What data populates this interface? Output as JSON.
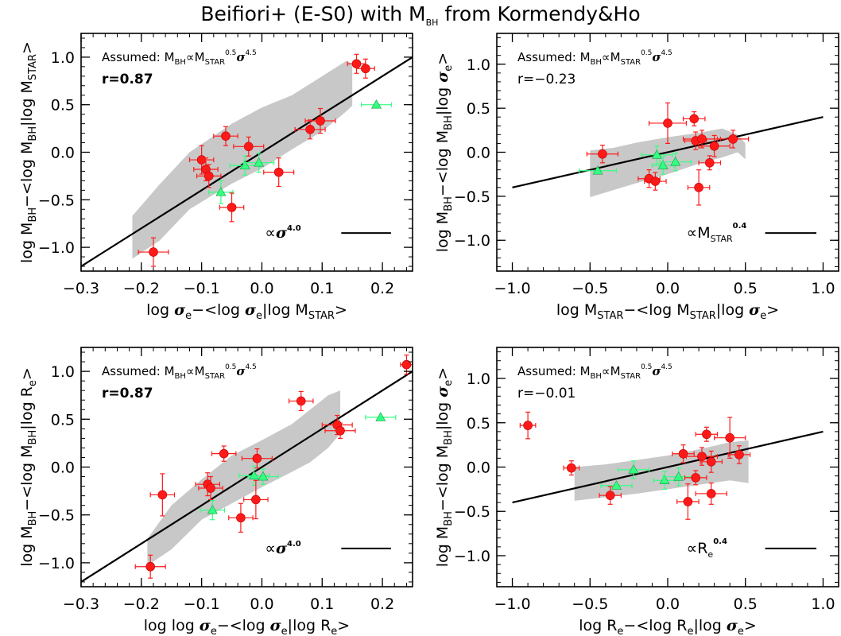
{
  "colors": {
    "red": "#ff1a1a",
    "green": "#33ff80",
    "band": "#c8c8c8",
    "line": "#000000"
  },
  "title": {
    "main": "Beifiori+ (E-S0) with M",
    "sub": "BH",
    "rest": " from Kormendy&Ho"
  },
  "assumed": {
    "prefix": "Assumed: M",
    "bh": "BH",
    "prop": "∝M",
    "star": "STAR",
    "exp1": "0.5",
    "sig": "σ",
    "exp2": "4.5"
  },
  "chart_data": [
    {
      "type": "scatter",
      "id": "tl",
      "xlim": [
        -0.3,
        0.25
      ],
      "ylim": [
        -1.25,
        1.25
      ],
      "xticks": [
        -0.3,
        -0.2,
        -0.1,
        0.0,
        0.1,
        0.2
      ],
      "xtick_labels": [
        "−0.3",
        "−0.2",
        "−0.1",
        "0.0",
        "0.1",
        "0.2"
      ],
      "yticks": [
        -1.0,
        -0.5,
        0.0,
        0.5,
        1.0
      ],
      "ytick_labels": [
        "−1.0",
        "−0.5",
        "0.0",
        "0.5",
        "1.0"
      ],
      "r_label": "r=0.87",
      "r_bold": true,
      "scale_label": {
        "prefix": "∝",
        "base": "σ",
        "base_italic": true,
        "exp": "4.0"
      },
      "fit_line": [
        [
          -0.3,
          -1.2
        ],
        [
          0.25,
          1.0
        ]
      ],
      "band_upper": [
        [
          -0.215,
          -0.67
        ],
        [
          -0.17,
          -0.34
        ],
        [
          -0.12,
          0.0
        ],
        [
          -0.05,
          0.3
        ],
        [
          0.0,
          0.47
        ],
        [
          0.05,
          0.6
        ],
        [
          0.1,
          0.8
        ],
        [
          0.14,
          0.96
        ],
        [
          0.15,
          0.93
        ]
      ],
      "band_lower": [
        [
          -0.215,
          -1.12
        ],
        [
          -0.17,
          -0.93
        ],
        [
          -0.12,
          -0.6
        ],
        [
          -0.05,
          -0.33
        ],
        [
          0.0,
          -0.17
        ],
        [
          0.05,
          0.03
        ],
        [
          0.1,
          0.22
        ],
        [
          0.14,
          0.43
        ],
        [
          0.15,
          0.49
        ]
      ],
      "red": [
        {
          "x": -0.18,
          "y": -1.05,
          "ex": 0.025,
          "ey": 0.15
        },
        {
          "x": -0.1,
          "y": -0.08,
          "ex": 0.02,
          "ey": 0.15
        },
        {
          "x": -0.093,
          "y": -0.18,
          "ex": 0.02,
          "ey": 0.12
        },
        {
          "x": -0.088,
          "y": -0.25,
          "ex": 0.02,
          "ey": 0.12
        },
        {
          "x": -0.06,
          "y": 0.17,
          "ex": 0.02,
          "ey": 0.1
        },
        {
          "x": -0.022,
          "y": 0.06,
          "ex": 0.025,
          "ey": 0.1
        },
        {
          "x": -0.05,
          "y": -0.58,
          "ex": 0.02,
          "ey": 0.15
        },
        {
          "x": 0.028,
          "y": -0.21,
          "ex": 0.025,
          "ey": 0.15
        },
        {
          "x": 0.08,
          "y": 0.24,
          "ex": 0.025,
          "ey": 0.1
        },
        {
          "x": 0.097,
          "y": 0.33,
          "ex": 0.025,
          "ey": 0.13
        },
        {
          "x": 0.157,
          "y": 0.93,
          "ex": 0.015,
          "ey": 0.1
        },
        {
          "x": 0.172,
          "y": 0.88,
          "ex": 0.015,
          "ey": 0.1
        }
      ],
      "green": [
        {
          "x": -0.068,
          "y": -0.42,
          "ex": 0.02,
          "ey": 0.12
        },
        {
          "x": -0.028,
          "y": -0.14,
          "ex": 0.025,
          "ey": 0.1
        },
        {
          "x": -0.005,
          "y": -0.11,
          "ex": 0.025,
          "ey": 0.1
        },
        {
          "x": 0.19,
          "y": 0.5,
          "ex": 0.025,
          "ey": 0.0
        }
      ],
      "xlabel": {
        "parts": [
          [
            "log ",
            ""
          ],
          [
            "σ",
            "sig"
          ],
          [
            "e",
            "sub"
          ],
          [
            "−<log ",
            ""
          ],
          [
            "σ",
            "sig"
          ],
          [
            "e",
            "sub"
          ],
          [
            "|log M",
            ""
          ],
          [
            "STAR",
            "sub"
          ],
          [
            ">",
            ""
          ]
        ]
      },
      "ylabel": {
        "parts": [
          [
            "log M",
            ""
          ],
          [
            "BH",
            "sub"
          ],
          [
            "−<log M",
            ""
          ],
          [
            "BH",
            "sub"
          ],
          [
            "|log M",
            ""
          ],
          [
            "STAR",
            "sub"
          ],
          [
            ">",
            ""
          ]
        ]
      }
    },
    {
      "type": "scatter",
      "id": "tr",
      "xlim": [
        -1.1,
        1.1
      ],
      "ylim": [
        -1.35,
        1.35
      ],
      "xticks": [
        -1.0,
        -0.5,
        0.0,
        0.5,
        1.0
      ],
      "xtick_labels": [
        "−1.0",
        "−0.5",
        "0.0",
        "0.5",
        "1.0"
      ],
      "yticks": [
        -1.0,
        -0.5,
        0.0,
        0.5,
        1.0
      ],
      "ytick_labels": [
        "−1.0",
        "−0.5",
        "0.0",
        "0.5",
        "1.0"
      ],
      "r_label": "r=−0.23",
      "r_bold": false,
      "scale_label": {
        "prefix": "∝",
        "base": "M",
        "sub": "STAR",
        "base_italic": false,
        "exp": "0.4"
      },
      "fit_line": [
        [
          -1.0,
          -0.4
        ],
        [
          1.0,
          0.4
        ]
      ],
      "band_upper": [
        [
          -0.5,
          0.02
        ],
        [
          -0.35,
          0.05
        ],
        [
          -0.2,
          0.11
        ],
        [
          0.0,
          0.17
        ],
        [
          0.2,
          0.22
        ],
        [
          0.35,
          0.27
        ],
        [
          0.45,
          0.2
        ],
        [
          0.5,
          0.1
        ]
      ],
      "band_lower": [
        [
          -0.5,
          -0.51
        ],
        [
          -0.35,
          -0.43
        ],
        [
          -0.2,
          -0.35
        ],
        [
          0.0,
          -0.25
        ],
        [
          0.2,
          -0.13
        ],
        [
          0.35,
          -0.06
        ],
        [
          0.45,
          0.0
        ],
        [
          0.5,
          -0.08
        ]
      ],
      "red": [
        {
          "x": -0.42,
          "y": -0.02,
          "ex": 0.1,
          "ey": 0.1
        },
        {
          "x": -0.12,
          "y": -0.3,
          "ex": 0.07,
          "ey": 0.1
        },
        {
          "x": -0.08,
          "y": -0.33,
          "ex": 0.07,
          "ey": 0.1
        },
        {
          "x": 0.0,
          "y": 0.33,
          "ex": 0.12,
          "ey": 0.23
        },
        {
          "x": 0.17,
          "y": 0.38,
          "ex": 0.07,
          "ey": 0.08
        },
        {
          "x": 0.18,
          "y": 0.13,
          "ex": 0.07,
          "ey": 0.1
        },
        {
          "x": 0.2,
          "y": -0.4,
          "ex": 0.07,
          "ey": 0.2
        },
        {
          "x": 0.22,
          "y": 0.15,
          "ex": 0.12,
          "ey": 0.1
        },
        {
          "x": 0.27,
          "y": -0.12,
          "ex": 0.07,
          "ey": 0.08
        },
        {
          "x": 0.3,
          "y": 0.07,
          "ex": 0.1,
          "ey": 0.12
        },
        {
          "x": 0.42,
          "y": 0.15,
          "ex": 0.1,
          "ey": 0.1
        }
      ],
      "green": [
        {
          "x": -0.45,
          "y": -0.21,
          "ex": 0.12,
          "ey": 0.0
        },
        {
          "x": -0.07,
          "y": -0.03,
          "ex": 0.1,
          "ey": 0.1
        },
        {
          "x": -0.03,
          "y": -0.15,
          "ex": 0.07,
          "ey": 0.1
        },
        {
          "x": 0.05,
          "y": -0.11,
          "ex": 0.1,
          "ey": 0.1
        }
      ],
      "xlabel": {
        "parts": [
          [
            "log M",
            ""
          ],
          [
            "STAR",
            "sub"
          ],
          [
            "−<log M",
            ""
          ],
          [
            "STAR",
            "sub"
          ],
          [
            "|log ",
            ""
          ],
          [
            "σ",
            "sig"
          ],
          [
            "e",
            "sub"
          ],
          [
            ">",
            ""
          ]
        ]
      },
      "ylabel": {
        "parts": [
          [
            "log M",
            ""
          ],
          [
            "BH",
            "sub"
          ],
          [
            "−<log M",
            ""
          ],
          [
            "BH",
            "sub"
          ],
          [
            "|log ",
            ""
          ],
          [
            "σ",
            "sig"
          ],
          [
            "e",
            "sub"
          ],
          [
            ">",
            ""
          ]
        ]
      }
    },
    {
      "type": "scatter",
      "id": "bl",
      "xlim": [
        -0.3,
        0.25
      ],
      "ylim": [
        -1.25,
        1.25
      ],
      "xticks": [
        -0.3,
        -0.2,
        -0.1,
        0.0,
        0.1,
        0.2
      ],
      "xtick_labels": [
        "−0.3",
        "−0.2",
        "−0.1",
        "0.0",
        "0.1",
        "0.2"
      ],
      "yticks": [
        -1.0,
        -0.5,
        0.0,
        0.5,
        1.0
      ],
      "ytick_labels": [
        "−1.0",
        "−0.5",
        "0.0",
        "0.5",
        "1.0"
      ],
      "r_label": "r=0.87",
      "r_bold": true,
      "scale_label": {
        "prefix": "∝",
        "base": "σ",
        "base_italic": true,
        "exp": "4.0"
      },
      "fit_line": [
        [
          -0.3,
          -1.2
        ],
        [
          0.25,
          1.0
        ]
      ],
      "band_upper": [
        [
          -0.19,
          -0.75
        ],
        [
          -0.15,
          -0.4
        ],
        [
          -0.1,
          -0.13
        ],
        [
          -0.05,
          0.12
        ],
        [
          0.0,
          0.28
        ],
        [
          0.05,
          0.45
        ],
        [
          0.08,
          0.6
        ],
        [
          0.11,
          0.75
        ],
        [
          0.13,
          0.8
        ]
      ],
      "band_lower": [
        [
          -0.19,
          -1.03
        ],
        [
          -0.15,
          -0.86
        ],
        [
          -0.1,
          -0.55
        ],
        [
          -0.05,
          -0.38
        ],
        [
          0.0,
          -0.21
        ],
        [
          0.05,
          -0.05
        ],
        [
          0.08,
          0.05
        ],
        [
          0.11,
          0.2
        ],
        [
          0.13,
          0.35
        ]
      ],
      "red": [
        {
          "x": -0.185,
          "y": -1.04,
          "ex": 0.025,
          "ey": 0.12
        },
        {
          "x": -0.165,
          "y": -0.29,
          "ex": 0.02,
          "ey": 0.22
        },
        {
          "x": -0.09,
          "y": -0.18,
          "ex": 0.02,
          "ey": 0.12
        },
        {
          "x": -0.085,
          "y": -0.22,
          "ex": 0.02,
          "ey": 0.12
        },
        {
          "x": -0.063,
          "y": 0.14,
          "ex": 0.02,
          "ey": 0.08
        },
        {
          "x": -0.035,
          "y": -0.53,
          "ex": 0.02,
          "ey": 0.15
        },
        {
          "x": -0.008,
          "y": 0.09,
          "ex": 0.025,
          "ey": 0.1
        },
        {
          "x": -0.01,
          "y": -0.34,
          "ex": 0.02,
          "ey": 0.2
        },
        {
          "x": 0.065,
          "y": 0.69,
          "ex": 0.02,
          "ey": 0.1
        },
        {
          "x": 0.125,
          "y": 0.44,
          "ex": 0.025,
          "ey": 0.1
        },
        {
          "x": 0.13,
          "y": 0.38,
          "ex": 0.025,
          "ey": 0.08
        },
        {
          "x": 0.24,
          "y": 1.07,
          "ex": 0.01,
          "ey": 0.1
        }
      ],
      "green": [
        {
          "x": -0.082,
          "y": -0.45,
          "ex": 0.02,
          "ey": 0.1
        },
        {
          "x": -0.013,
          "y": -0.09,
          "ex": 0.025,
          "ey": 0.1
        },
        {
          "x": 0.002,
          "y": -0.1,
          "ex": 0.025,
          "ey": 0.08
        },
        {
          "x": 0.197,
          "y": 0.52,
          "ex": 0.025,
          "ey": 0.0
        }
      ],
      "xlabel": {
        "parts": [
          [
            "log log ",
            ""
          ],
          [
            "σ",
            "sig"
          ],
          [
            "e",
            "sub"
          ],
          [
            "−<log ",
            ""
          ],
          [
            "σ",
            "sig"
          ],
          [
            "e",
            "sub"
          ],
          [
            "|log R",
            ""
          ],
          [
            "e",
            "sub"
          ],
          [
            ">",
            ""
          ]
        ]
      },
      "ylabel": {
        "parts": [
          [
            "log M",
            ""
          ],
          [
            "BH",
            "sub"
          ],
          [
            "−<log M",
            ""
          ],
          [
            "BH",
            "sub"
          ],
          [
            "|log R",
            ""
          ],
          [
            "e",
            "sub"
          ],
          [
            ">",
            ""
          ]
        ]
      }
    },
    {
      "type": "scatter",
      "id": "br",
      "xlim": [
        -1.1,
        1.1
      ],
      "ylim": [
        -1.35,
        1.35
      ],
      "xticks": [
        -1.0,
        -0.5,
        0.0,
        0.5,
        1.0
      ],
      "xtick_labels": [
        "−1.0",
        "−0.5",
        "0.0",
        "0.5",
        "1.0"
      ],
      "yticks": [
        -1.0,
        -0.5,
        0.0,
        0.5,
        1.0
      ],
      "ytick_labels": [
        "−1.0",
        "−0.5",
        "0.0",
        "0.5",
        "1.0"
      ],
      "r_label": "r=−0.01",
      "r_bold": false,
      "scale_label": {
        "prefix": "∝",
        "base": "R",
        "sub": "e",
        "base_italic": false,
        "exp": "0.4"
      },
      "fit_line": [
        [
          -1.0,
          -0.4
        ],
        [
          1.0,
          0.4
        ]
      ],
      "band_upper": [
        [
          -0.6,
          0.0
        ],
        [
          -0.4,
          0.03
        ],
        [
          -0.2,
          0.08
        ],
        [
          0.0,
          0.13
        ],
        [
          0.2,
          0.2
        ],
        [
          0.4,
          0.28
        ],
        [
          0.52,
          0.3
        ]
      ],
      "band_lower": [
        [
          -0.6,
          -0.38
        ],
        [
          -0.4,
          -0.34
        ],
        [
          -0.2,
          -0.3
        ],
        [
          0.0,
          -0.25
        ],
        [
          0.2,
          -0.2
        ],
        [
          0.4,
          -0.15
        ],
        [
          0.52,
          -0.18
        ]
      ],
      "red": [
        {
          "x": -0.9,
          "y": 0.47,
          "ex": 0.05,
          "ey": 0.15
        },
        {
          "x": -0.62,
          "y": -0.01,
          "ex": 0.05,
          "ey": 0.08
        },
        {
          "x": -0.37,
          "y": -0.32,
          "ex": 0.07,
          "ey": 0.1
        },
        {
          "x": 0.1,
          "y": 0.15,
          "ex": 0.07,
          "ey": 0.1
        },
        {
          "x": 0.13,
          "y": -0.39,
          "ex": 0.07,
          "ey": 0.2
        },
        {
          "x": 0.18,
          "y": -0.12,
          "ex": 0.07,
          "ey": 0.08
        },
        {
          "x": 0.22,
          "y": 0.12,
          "ex": 0.1,
          "ey": 0.1
        },
        {
          "x": 0.25,
          "y": 0.37,
          "ex": 0.07,
          "ey": 0.08
        },
        {
          "x": 0.28,
          "y": 0.06,
          "ex": 0.07,
          "ey": 0.12
        },
        {
          "x": 0.28,
          "y": -0.3,
          "ex": 0.1,
          "ey": 0.12
        },
        {
          "x": 0.4,
          "y": 0.33,
          "ex": 0.1,
          "ey": 0.23
        },
        {
          "x": 0.46,
          "y": 0.14,
          "ex": 0.07,
          "ey": 0.1
        }
      ],
      "green": [
        {
          "x": -0.33,
          "y": -0.21,
          "ex": 0.1,
          "ey": 0.0
        },
        {
          "x": -0.22,
          "y": -0.03,
          "ex": 0.1,
          "ey": 0.1
        },
        {
          "x": -0.02,
          "y": -0.15,
          "ex": 0.07,
          "ey": 0.1
        },
        {
          "x": 0.07,
          "y": -0.11,
          "ex": 0.1,
          "ey": 0.1
        }
      ],
      "xlabel": {
        "parts": [
          [
            "log R",
            ""
          ],
          [
            "e",
            "sub"
          ],
          [
            "−<log R",
            ""
          ],
          [
            "e",
            "sub"
          ],
          [
            "|log ",
            ""
          ],
          [
            "σ",
            "sig"
          ],
          [
            "e",
            "sub"
          ],
          [
            ">",
            ""
          ]
        ]
      },
      "ylabel": {
        "parts": [
          [
            "log M",
            ""
          ],
          [
            "BH",
            "sub"
          ],
          [
            "−<log M",
            ""
          ],
          [
            "BH",
            "sub"
          ],
          [
            "|log ",
            ""
          ],
          [
            "σ",
            "sig"
          ],
          [
            "e",
            "sub"
          ],
          [
            ">",
            ""
          ]
        ]
      }
    }
  ]
}
